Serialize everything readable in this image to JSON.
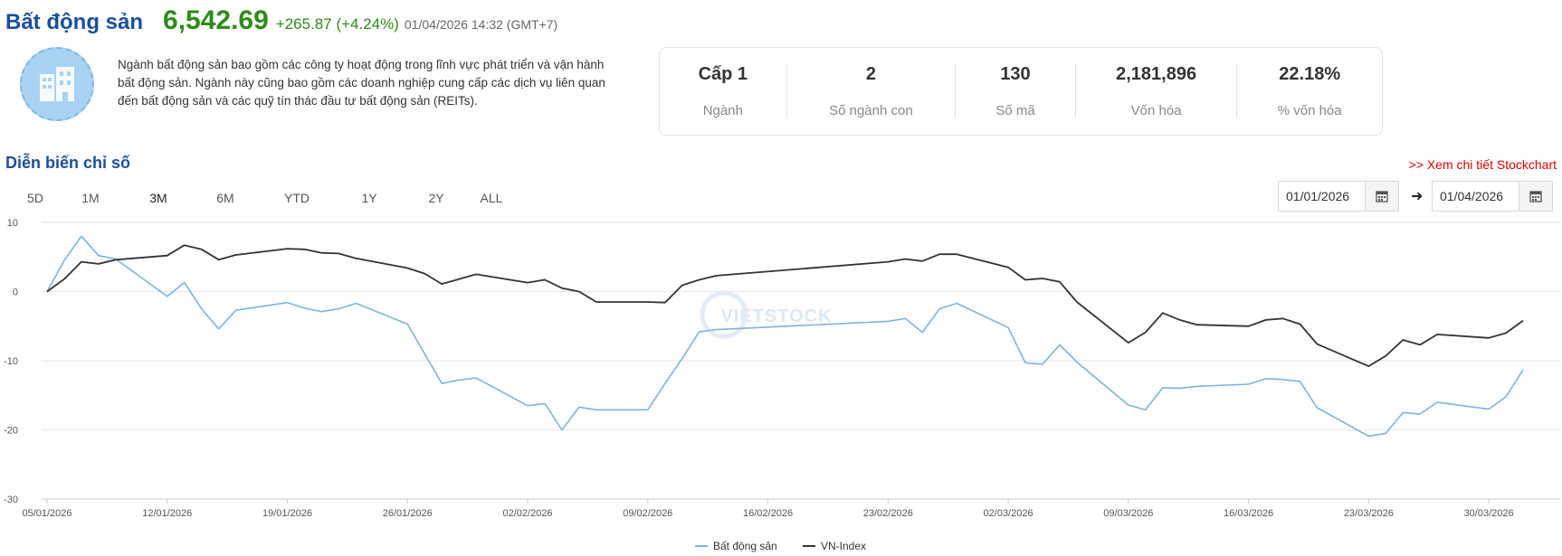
{
  "header": {
    "title": "Bất động sản",
    "price": "6,542.69",
    "change": "+265.87 (+4.24%)",
    "timestamp": "01/04/2026 14:32 (GMT+7)"
  },
  "logo": {
    "icon": "building-icon"
  },
  "description": "Ngành bất động sản bao gồm các công ty hoạt động trong lĩnh vực phát triển và vận hành bất động sản. Ngành này cũng bao gồm các doanh nghiệp cung cấp các dịch vụ liên quan đến bất động sản và các quỹ tín thác đầu tư bất động sản (REITs).",
  "stats": [
    {
      "value": "Cấp 1",
      "label": "Ngành"
    },
    {
      "value": "2",
      "label": "Số ngành con"
    },
    {
      "value": "130",
      "label": "Số mã"
    },
    {
      "value": "2,181,896",
      "label": "Vốn hóa"
    },
    {
      "value": "22.18%",
      "label": "% vốn hóa"
    }
  ],
  "section_title": "Diễn biến chỉ số",
  "stockchart_link": ">> Xem chi tiết Stockchart",
  "range_tabs": [
    "5D",
    "1M",
    "3M",
    "6M",
    "YTD",
    "1Y",
    "2Y",
    "ALL"
  ],
  "active_range": "3M",
  "date_from": "01/01/2026",
  "date_to": "01/04/2026",
  "colors": {
    "accent": "#1a4f99",
    "positive": "#2e8b1a",
    "link": "#e00000",
    "series1": "#7ab4e3",
    "series2": "#333333"
  },
  "chart_data": {
    "type": "line",
    "ylim": [
      -30,
      10
    ],
    "yticks": [
      10,
      0,
      -10,
      -20,
      -30
    ],
    "xlim": [
      "2026-01-05",
      "2026-04-02"
    ],
    "xticks": [
      "05/01/2026",
      "12/01/2026",
      "19/01/2026",
      "26/01/2026",
      "02/02/2026",
      "09/02/2026",
      "16/02/2026",
      "23/02/2026",
      "02/03/2026",
      "09/03/2026",
      "16/03/2026",
      "23/03/2026",
      "30/03/2026"
    ],
    "legend": "bottom-center",
    "watermark": "VIETSTOCK",
    "grid": true,
    "series": [
      {
        "name": "Bất động sản",
        "color": "#7ab4e3",
        "points": [
          [
            "2026-01-05",
            0
          ],
          [
            "2026-01-06",
            4.5
          ],
          [
            "2026-01-07",
            8.0
          ],
          [
            "2026-01-08",
            5.2
          ],
          [
            "2026-01-09",
            4.7
          ],
          [
            "2026-01-12",
            -0.7
          ],
          [
            "2026-01-13",
            1.3
          ],
          [
            "2026-01-14",
            -2.5
          ],
          [
            "2026-01-15",
            -5.4
          ],
          [
            "2026-01-16",
            -2.7
          ],
          [
            "2026-01-19",
            -1.6
          ],
          [
            "2026-01-20",
            -2.4
          ],
          [
            "2026-01-21",
            -2.9
          ],
          [
            "2026-01-22",
            -2.5
          ],
          [
            "2026-01-23",
            -1.7
          ],
          [
            "2026-01-26",
            -4.7
          ],
          [
            "2026-01-28",
            -13.3
          ],
          [
            "2026-01-29",
            -12.8
          ],
          [
            "2026-01-30",
            -12.5
          ],
          [
            "2026-02-02",
            -16.5
          ],
          [
            "2026-02-03",
            -16.2
          ],
          [
            "2026-02-04",
            -20.0
          ],
          [
            "2026-02-05",
            -16.7
          ],
          [
            "2026-02-06",
            -17.1
          ],
          [
            "2026-02-09",
            -17.1
          ],
          [
            "2026-02-10",
            -13.3
          ],
          [
            "2026-02-11",
            -9.7
          ],
          [
            "2026-02-12",
            -5.8
          ],
          [
            "2026-02-13",
            -5.5
          ],
          [
            "2026-02-23",
            -4.3
          ],
          [
            "2026-02-24",
            -3.9
          ],
          [
            "2026-02-25",
            -5.9
          ],
          [
            "2026-02-26",
            -2.5
          ],
          [
            "2026-02-27",
            -1.7
          ],
          [
            "2026-03-02",
            -5.2
          ],
          [
            "2026-03-03",
            -10.3
          ],
          [
            "2026-03-04",
            -10.5
          ],
          [
            "2026-03-05",
            -7.7
          ],
          [
            "2026-03-06",
            -10.2
          ],
          [
            "2026-03-09",
            -16.4
          ],
          [
            "2026-03-10",
            -17.1
          ],
          [
            "2026-03-11",
            -13.9
          ],
          [
            "2026-03-12",
            -14.0
          ],
          [
            "2026-03-13",
            -13.7
          ],
          [
            "2026-03-16",
            -13.4
          ],
          [
            "2026-03-17",
            -12.6
          ],
          [
            "2026-03-18",
            -12.7
          ],
          [
            "2026-03-19",
            -13.0
          ],
          [
            "2026-03-20",
            -16.8
          ],
          [
            "2026-03-23",
            -20.9
          ],
          [
            "2026-03-24",
            -20.5
          ],
          [
            "2026-03-25",
            -17.5
          ],
          [
            "2026-03-26",
            -17.7
          ],
          [
            "2026-03-27",
            -16.0
          ],
          [
            "2026-03-30",
            -17.0
          ],
          [
            "2026-03-31",
            -15.2
          ],
          [
            "2026-04-01",
            -11.3
          ]
        ]
      },
      {
        "name": "VN-Index",
        "color": "#333333",
        "points": [
          [
            "2026-01-05",
            0
          ],
          [
            "2026-01-06",
            1.8
          ],
          [
            "2026-01-07",
            4.3
          ],
          [
            "2026-01-08",
            4.0
          ],
          [
            "2026-01-09",
            4.6
          ],
          [
            "2026-01-12",
            5.2
          ],
          [
            "2026-01-13",
            6.7
          ],
          [
            "2026-01-14",
            6.1
          ],
          [
            "2026-01-15",
            4.6
          ],
          [
            "2026-01-16",
            5.3
          ],
          [
            "2026-01-19",
            6.2
          ],
          [
            "2026-01-20",
            6.1
          ],
          [
            "2026-01-21",
            5.6
          ],
          [
            "2026-01-22",
            5.5
          ],
          [
            "2026-01-23",
            4.8
          ],
          [
            "2026-01-26",
            3.4
          ],
          [
            "2026-01-27",
            2.6
          ],
          [
            "2026-01-28",
            1.1
          ],
          [
            "2026-01-29",
            1.8
          ],
          [
            "2026-01-30",
            2.5
          ],
          [
            "2026-02-02",
            1.3
          ],
          [
            "2026-02-03",
            1.7
          ],
          [
            "2026-02-04",
            0.5
          ],
          [
            "2026-02-05",
            0
          ],
          [
            "2026-02-06",
            -1.5
          ],
          [
            "2026-02-09",
            -1.5
          ],
          [
            "2026-02-10",
            -1.6
          ],
          [
            "2026-02-11",
            0.9
          ],
          [
            "2026-02-12",
            1.7
          ],
          [
            "2026-02-13",
            2.3
          ],
          [
            "2026-02-23",
            4.3
          ],
          [
            "2026-02-24",
            4.7
          ],
          [
            "2026-02-25",
            4.4
          ],
          [
            "2026-02-26",
            5.4
          ],
          [
            "2026-02-27",
            5.4
          ],
          [
            "2026-03-02",
            3.5
          ],
          [
            "2026-03-03",
            1.7
          ],
          [
            "2026-03-04",
            1.9
          ],
          [
            "2026-03-05",
            1.4
          ],
          [
            "2026-03-06",
            -1.5
          ],
          [
            "2026-03-09",
            -7.4
          ],
          [
            "2026-03-10",
            -5.9
          ],
          [
            "2026-03-11",
            -3.1
          ],
          [
            "2026-03-12",
            -4.1
          ],
          [
            "2026-03-13",
            -4.8
          ],
          [
            "2026-03-16",
            -5.0
          ],
          [
            "2026-03-17",
            -4.1
          ],
          [
            "2026-03-18",
            -3.9
          ],
          [
            "2026-03-19",
            -4.7
          ],
          [
            "2026-03-20",
            -7.6
          ],
          [
            "2026-03-23",
            -10.8
          ],
          [
            "2026-03-24",
            -9.3
          ],
          [
            "2026-03-25",
            -7.0
          ],
          [
            "2026-03-26",
            -7.7
          ],
          [
            "2026-03-27",
            -6.2
          ],
          [
            "2026-03-30",
            -6.7
          ],
          [
            "2026-03-31",
            -6.0
          ],
          [
            "2026-04-01",
            -4.2
          ]
        ]
      }
    ]
  }
}
